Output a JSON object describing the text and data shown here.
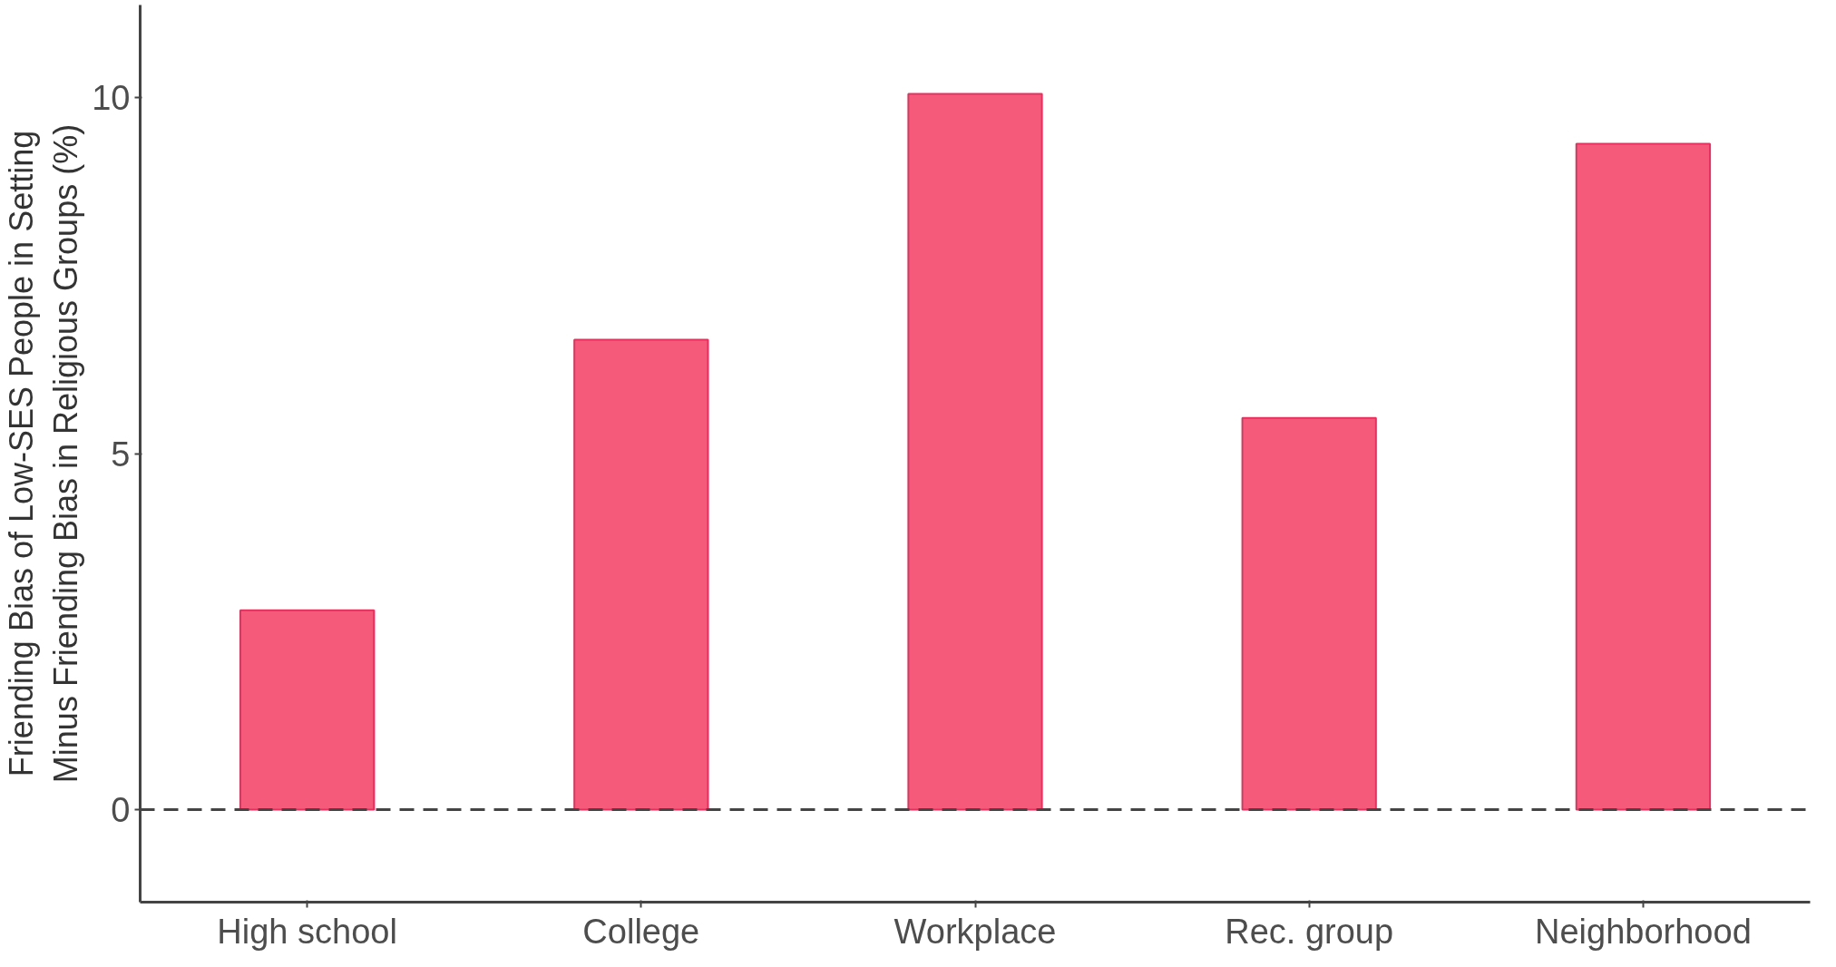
{
  "chart_data": {
    "type": "bar",
    "ylabel": "Friending Bias of Low-SES People in Setting\nMinus Friending Bias in Religious Groups (%)",
    "categories": [
      "High school",
      "College",
      "Workplace",
      "Rec. group",
      "Neighborhood"
    ],
    "values": [
      2.8,
      6.6,
      10.05,
      5.5,
      9.35
    ],
    "color": "#f65a7b",
    "ylim": [
      -1.3,
      11.3
    ],
    "yticks": [
      0,
      5,
      10
    ],
    "grid": false,
    "ref_lines": [
      {
        "axis": "y",
        "value": 0,
        "line_style": "dashed",
        "color": "#444444"
      }
    ]
  }
}
